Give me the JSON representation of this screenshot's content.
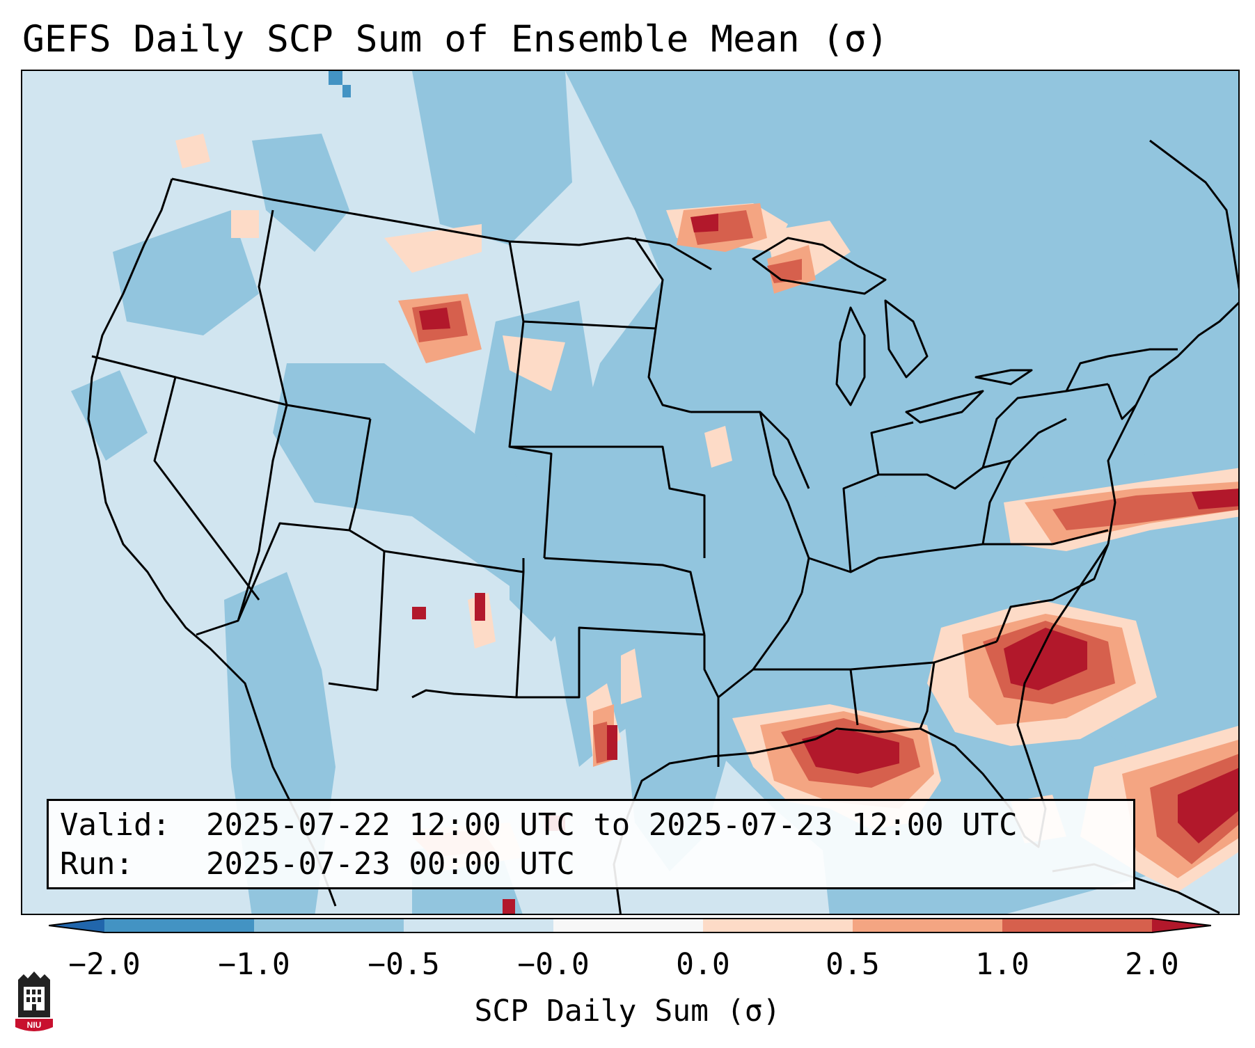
{
  "title": "GEFS Daily SCP Sum of Ensemble Mean (σ)",
  "info": {
    "valid_label": "Valid:",
    "valid_value": "2025-07-22 12:00 UTC to 2025-07-23 12:00 UTC",
    "run_label": "Run:",
    "run_value": "2025-07-23 00:00 UTC"
  },
  "colorbar": {
    "label": "SCP Daily Sum (σ)",
    "ticks": [
      "−2.0",
      "−1.0",
      "−0.5",
      "−0.0",
      "0.0",
      "0.5",
      "1.0",
      "2.0"
    ],
    "colors": [
      "#4393c3",
      "#92c5de",
      "#d1e5f0",
      "#f7f7f7",
      "#fddbc7",
      "#f4a582",
      "#d6604d"
    ],
    "under_color": "#2166ac",
    "over_color": "#b2182b"
  },
  "map_colors": {
    "background": "#d1e5f0",
    "moderate_negative": "#92c5de",
    "strong_negative": "#4393c3",
    "slight_positive": "#fddbc7",
    "moderate_positive": "#f4a582",
    "high_positive": "#d6604d",
    "extreme_positive": "#b2182b",
    "boundary": "#000000"
  },
  "logo": {
    "text": "NIU",
    "color": "#c8102e"
  }
}
